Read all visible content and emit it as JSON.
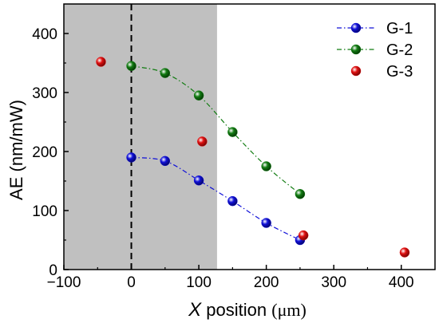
{
  "chart_data": {
    "type": "scatter",
    "ylabel": "AE (nm/mW)",
    "xlabel": {
      "italic": "X",
      "rest": " position ",
      "unit": "(μm)"
    },
    "xlim": [
      -100,
      450
    ],
    "ylim": [
      0,
      450
    ],
    "x_ticks": [
      -100,
      0,
      100,
      200,
      300,
      400
    ],
    "y_ticks": [
      0,
      100,
      200,
      300,
      400
    ],
    "x_tick_labels": [
      "−100",
      "0",
      "100",
      "200",
      "300",
      "400"
    ],
    "y_tick_labels": [
      "0",
      "100",
      "200",
      "300",
      "400"
    ],
    "shaded_region": {
      "x_from": -100,
      "x_to": 127,
      "color": "#c0c0c0"
    },
    "reference_line": {
      "x": 0,
      "style": "dashed"
    },
    "grid": false,
    "legend_position": "top-right",
    "series": [
      {
        "name": "G-1",
        "color": "#1010d8",
        "line": "dash-dot",
        "x": [
          0,
          50,
          100,
          150,
          200,
          250
        ],
        "y": [
          190,
          184,
          151,
          116,
          79,
          50
        ]
      },
      {
        "name": "G-2",
        "color": "#127c12",
        "line": "dash-dot",
        "x": [
          0,
          50,
          100,
          150,
          200,
          250
        ],
        "y": [
          345,
          333,
          295,
          233,
          175,
          128
        ]
      },
      {
        "name": "G-3",
        "color": "#e01010",
        "line": "none",
        "x": [
          -45,
          105,
          255,
          405
        ],
        "y": [
          352,
          217,
          58,
          29
        ]
      }
    ]
  }
}
